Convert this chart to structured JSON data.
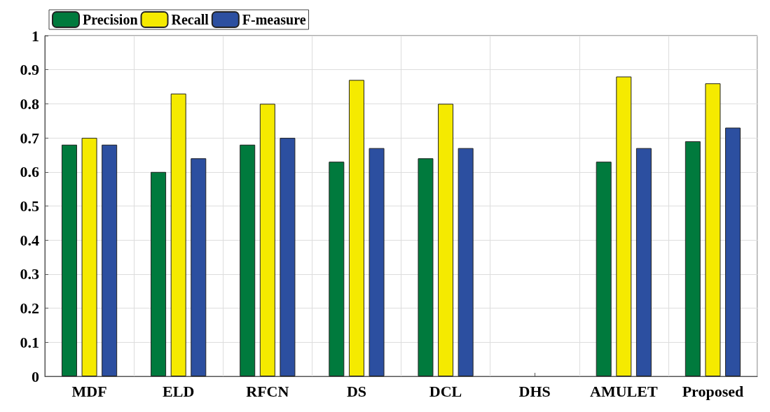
{
  "chart_data": {
    "type": "bar",
    "categories": [
      "MDF",
      "ELD",
      "RFCN",
      "DS",
      "DCL",
      "DHS",
      "AMULET",
      "Proposed"
    ],
    "series": [
      {
        "name": "Precision",
        "color": "#007a3d",
        "values": [
          0.68,
          0.6,
          0.68,
          0.63,
          0.64,
          null,
          0.63,
          0.69
        ]
      },
      {
        "name": "Recall",
        "color": "#f5ea00",
        "values": [
          0.7,
          0.83,
          0.8,
          0.87,
          0.8,
          null,
          0.88,
          0.86
        ]
      },
      {
        "name": "F-measure",
        "color": "#2c4fa0",
        "values": [
          0.68,
          0.64,
          0.7,
          0.67,
          0.67,
          null,
          0.67,
          0.73
        ]
      }
    ],
    "ylim": [
      0,
      1
    ],
    "yticks": [
      0,
      0.1,
      0.2,
      0.3,
      0.4,
      0.5,
      0.6,
      0.7,
      0.8,
      0.9,
      1
    ],
    "grid": true,
    "legend": "top left"
  }
}
